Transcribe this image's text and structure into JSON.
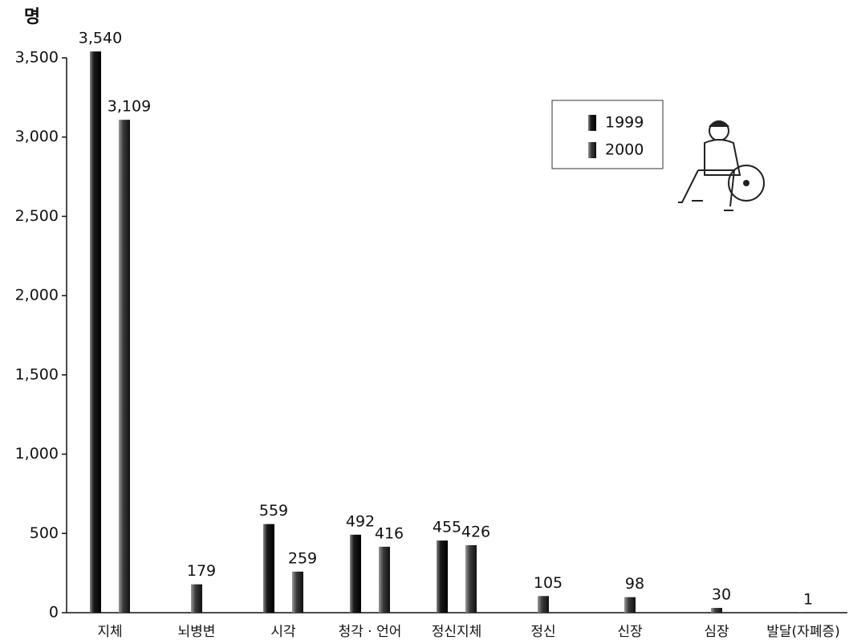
{
  "chart_data": {
    "type": "bar",
    "y_label": "명",
    "categories": [
      "지체",
      "뇌병변",
      "시각",
      "청각 · 언어",
      "정신지체",
      "정신",
      "신장",
      "심장",
      "발달(자폐증)"
    ],
    "series": [
      {
        "name": "1999",
        "color": "#1a1a1a",
        "values": [
          3540,
          null,
          559,
          492,
          455,
          null,
          null,
          null,
          null
        ],
        "value_labels": [
          "3,540",
          null,
          "559",
          "492",
          "455",
          null,
          null,
          null,
          null
        ]
      },
      {
        "name": "2000",
        "color": "#3a3a3a",
        "values": [
          3109,
          179,
          259,
          416,
          426,
          105,
          98,
          30,
          1
        ],
        "value_labels": [
          "3,109",
          "179",
          "259",
          "416",
          "426",
          "105",
          "98",
          "30",
          "1"
        ]
      }
    ],
    "ylim": [
      0,
      3500
    ],
    "yticks": [
      0,
      500,
      {
        "value": 1000,
        "label": "1,000"
      },
      {
        "value": 1500,
        "label": "1,500"
      },
      {
        "value": 2000,
        "label": "2,000"
      },
      {
        "value": 2500,
        "label": "2,500"
      },
      {
        "value": 3000,
        "label": "3,000"
      },
      {
        "value": 3500,
        "label": "3,500"
      }
    ],
    "legend": "upper-right"
  }
}
